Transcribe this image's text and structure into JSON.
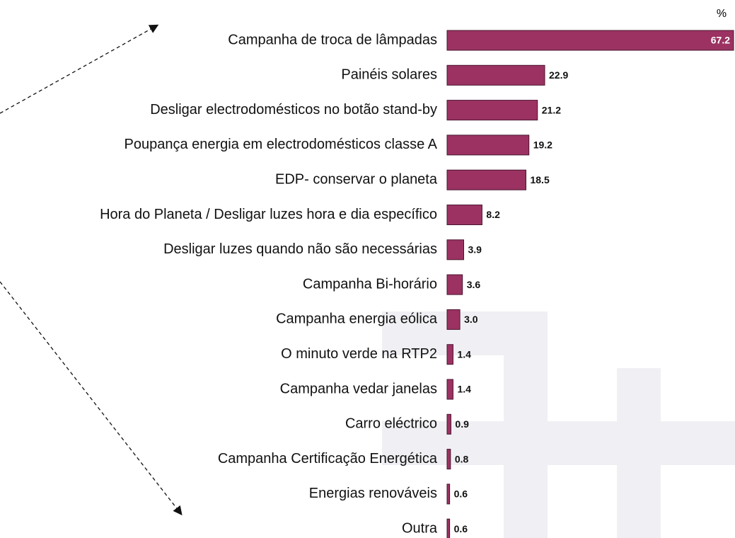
{
  "chart_data": {
    "type": "bar",
    "orientation": "horizontal",
    "unit_label": "%",
    "categories": [
      "Campanha de troca de lâmpadas",
      "Painéis solares",
      "Desligar electrodomésticos no botão stand-by",
      "Poupança energia em electrodomésticos classe A",
      "EDP- conservar o planeta",
      "Hora do Planeta / Desligar luzes hora e dia específico",
      "Desligar luzes quando não são necessárias",
      "Campanha Bi-horário",
      "Campanha energia eólica",
      "O minuto verde na RTP2",
      "Campanha vedar janelas",
      "Carro eléctrico",
      "Campanha Certificação Energética",
      "Energias renováveis",
      "Outra"
    ],
    "values": [
      67.2,
      22.9,
      21.2,
      19.2,
      18.5,
      8.2,
      3.9,
      3.6,
      3.0,
      1.4,
      1.4,
      0.9,
      0.8,
      0.6,
      0.6
    ],
    "value_labels": [
      "67.2",
      "22.9",
      "21.2",
      "19.2",
      "18.5",
      "8.2",
      "3.9",
      "3.6",
      "3.0",
      "1.4",
      "1.4",
      "0.9",
      "0.8",
      "0.6",
      "0.6"
    ],
    "color": "#9b3262"
  }
}
